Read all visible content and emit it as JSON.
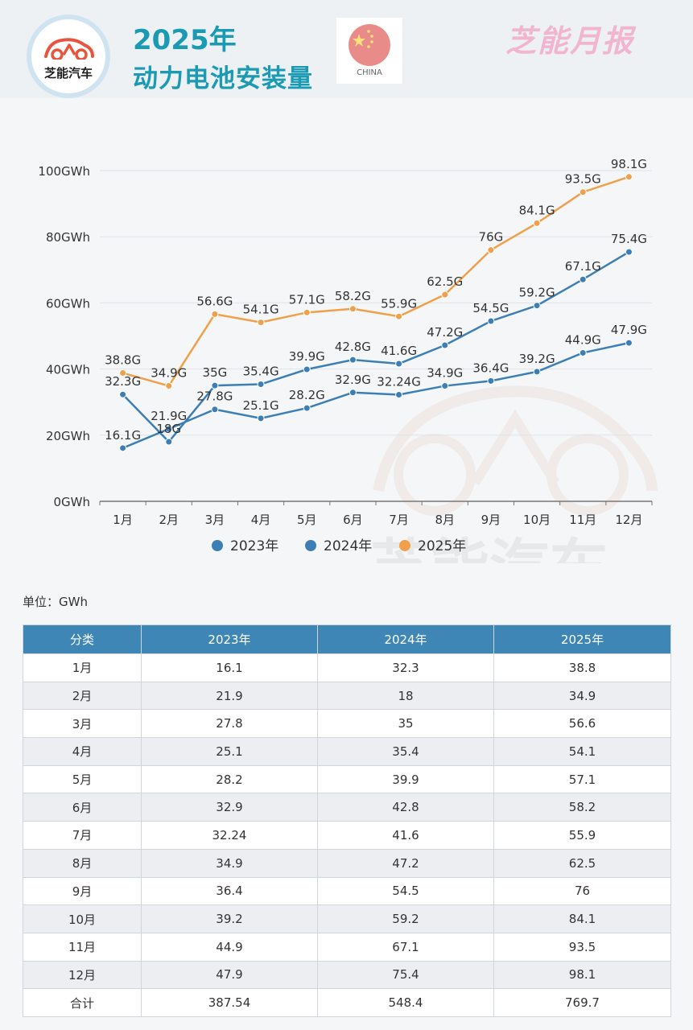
{
  "header": {
    "logo_text": "芝能汽车",
    "title_year": "2025年",
    "title_main": "动力电池安装量",
    "flag_label": "CHINA",
    "brand_title": "芝能月报"
  },
  "watermark": {
    "text": "芝能汽车"
  },
  "colors": {
    "series_2023": "#3d7fb5",
    "series_2024": "#3d7fb5",
    "series_2025": "#f0a04a",
    "accent": "#1a9ab3",
    "table_header": "#3d86b5"
  },
  "chart_data": {
    "type": "line",
    "categories": [
      "1月",
      "2月",
      "3月",
      "4月",
      "5月",
      "6月",
      "7月",
      "8月",
      "9月",
      "10月",
      "11月",
      "12月"
    ],
    "y_ticks": [
      "0GWh",
      "20GWh",
      "40GWh",
      "60GWh",
      "80GWh",
      "100GWh"
    ],
    "ylim": [
      0,
      100
    ],
    "legend_position": "bottom",
    "series": [
      {
        "name": "2023年",
        "values": [
          16.1,
          21.9,
          27.8,
          25.1,
          28.2,
          32.9,
          32.24,
          34.9,
          36.4,
          39.2,
          44.9,
          47.9
        ],
        "labels": [
          "16.1G",
          "21.9G",
          "27.8G",
          "25.1G",
          "28.2G",
          "32.9G",
          "32.24G",
          "34.9G",
          "36.4G",
          "39.2G",
          "44.9G",
          "47.9G"
        ]
      },
      {
        "name": "2024年",
        "values": [
          32.3,
          18,
          35,
          35.4,
          39.9,
          42.8,
          41.6,
          47.2,
          54.5,
          59.2,
          67.1,
          75.4
        ],
        "labels": [
          "32.3G",
          "18G",
          "35G",
          "35.4G",
          "39.9G",
          "42.8G",
          "41.6G",
          "47.2G",
          "54.5G",
          "59.2G",
          "67.1G",
          "75.4G"
        ]
      },
      {
        "name": "2025年",
        "values": [
          38.8,
          34.9,
          56.6,
          54.1,
          57.1,
          58.2,
          55.9,
          62.5,
          76,
          84.1,
          93.5,
          98.1
        ],
        "labels": [
          "38.8G",
          "34.9G",
          "56.6G",
          "54.1G",
          "57.1G",
          "58.2G",
          "55.9G",
          "62.5G",
          "76G",
          "84.1G",
          "93.5G",
          "98.1G"
        ]
      }
    ]
  },
  "unit_label": "单位：GWh",
  "table": {
    "headers": [
      "分类",
      "2023年",
      "2024年",
      "2025年"
    ],
    "rows": [
      [
        "1月",
        "16.1",
        "32.3",
        "38.8"
      ],
      [
        "2月",
        "21.9",
        "18",
        "34.9"
      ],
      [
        "3月",
        "27.8",
        "35",
        "56.6"
      ],
      [
        "4月",
        "25.1",
        "35.4",
        "54.1"
      ],
      [
        "5月",
        "28.2",
        "39.9",
        "57.1"
      ],
      [
        "6月",
        "32.9",
        "42.8",
        "58.2"
      ],
      [
        "7月",
        "32.24",
        "41.6",
        "55.9"
      ],
      [
        "8月",
        "34.9",
        "47.2",
        "62.5"
      ],
      [
        "9月",
        "36.4",
        "54.5",
        "76"
      ],
      [
        "10月",
        "39.2",
        "59.2",
        "84.1"
      ],
      [
        "11月",
        "44.9",
        "67.1",
        "93.5"
      ],
      [
        "12月",
        "47.9",
        "75.4",
        "98.1"
      ],
      [
        "合计",
        "387.54",
        "548.4",
        "769.7"
      ]
    ]
  }
}
